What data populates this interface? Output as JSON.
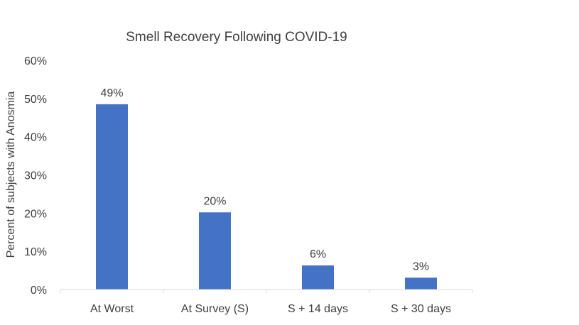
{
  "chart_data": {
    "type": "bar",
    "title": "Smell Recovery Following COVID-19",
    "ylabel": "Percent of subjects with Anosmia",
    "xlabel": "",
    "categories": [
      "At Worst",
      "At Survey (S)",
      "S + 14 days",
      "S + 30 days"
    ],
    "values": [
      0.485,
      0.202,
      0.063,
      0.031
    ],
    "data_labels": [
      "49%",
      "20%",
      "6%",
      "3%"
    ],
    "ylim": [
      0,
      0.6
    ],
    "yticks": [
      0,
      0.1,
      0.2,
      0.3,
      0.4,
      0.5,
      0.6
    ],
    "ytick_labels": [
      "0%",
      "10%",
      "20%",
      "30%",
      "40%",
      "50%",
      "60%"
    ],
    "grid": false,
    "legend": "none",
    "bar_color": "#4472C4",
    "axis_color": "#D9D9D9"
  }
}
